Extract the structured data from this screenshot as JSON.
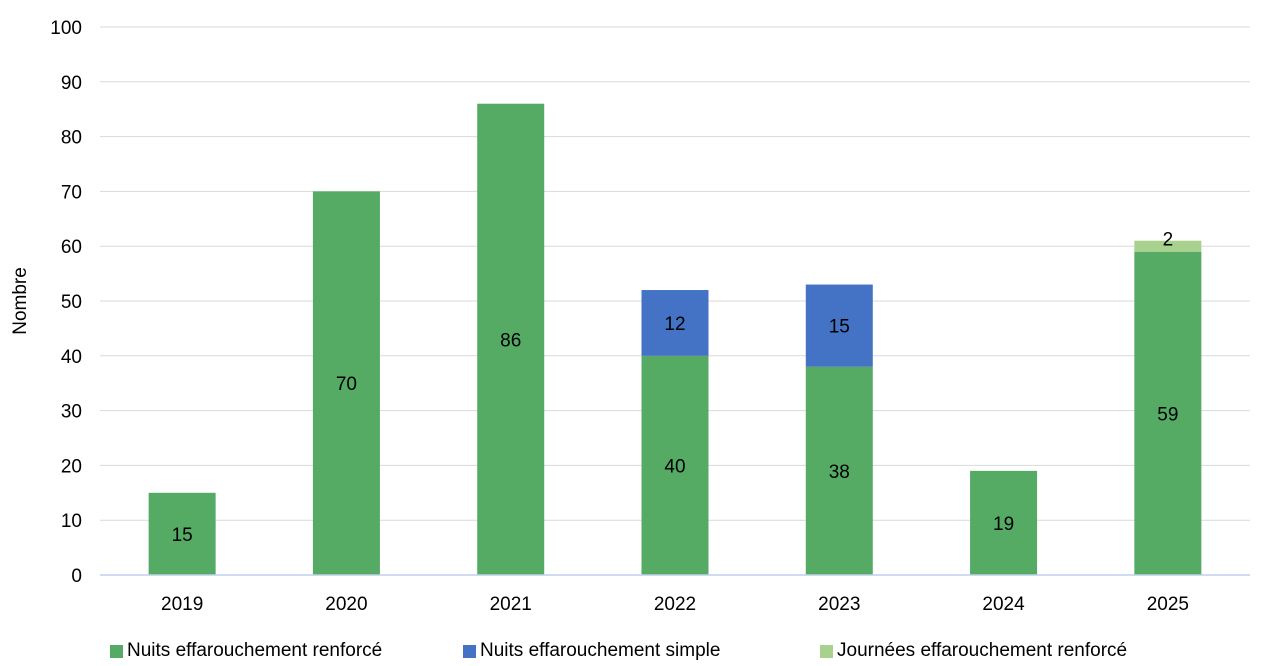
{
  "chart_data": {
    "type": "bar",
    "stacked": true,
    "categories": [
      "2019",
      "2020",
      "2021",
      "2022",
      "2023",
      "2024",
      "2025"
    ],
    "series": [
      {
        "name": "Nuits effarouchement renforcé",
        "color": "#55AB64",
        "values": [
          15,
          70,
          86,
          40,
          38,
          19,
          59
        ]
      },
      {
        "name": "Nuits effarouchement simple",
        "color": "#4472C4",
        "values": [
          0,
          0,
          0,
          12,
          15,
          0,
          0
        ]
      },
      {
        "name": "Journées effarouchement renforcé",
        "color": "#A9D18E",
        "values": [
          0,
          0,
          0,
          0,
          0,
          0,
          2
        ]
      }
    ],
    "title": "",
    "xlabel": "",
    "ylabel": "Nombre",
    "ylim": [
      0,
      100
    ],
    "yticks": [
      "0",
      "10",
      "20",
      "30",
      "40",
      "50",
      "60",
      "70",
      "80",
      "90",
      "100"
    ],
    "grid": true,
    "legend_position": "bottom"
  }
}
